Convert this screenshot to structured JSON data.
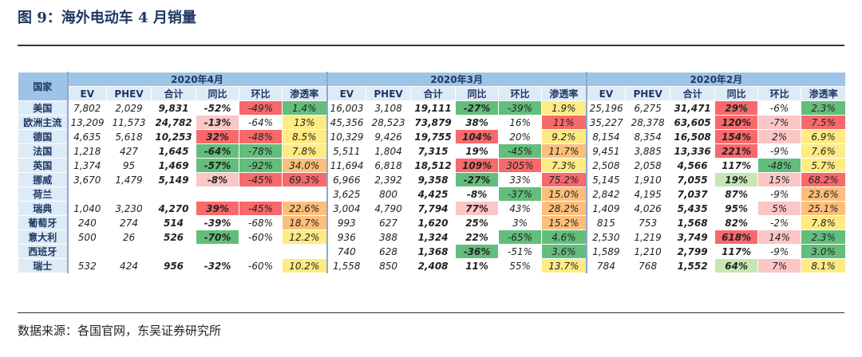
{
  "header": {
    "title": "图 9：海外电动车 4 月销量"
  },
  "table": {
    "corner": "国家",
    "groups": [
      "2020年4月",
      "2020年3月",
      "2020年2月"
    ],
    "columns": [
      "EV",
      "PHEV",
      "合计",
      "同比",
      "环比",
      "渗透率"
    ],
    "rows": [
      {
        "country": "美国",
        "cells": [
          "7,802",
          "2,029",
          "9,831",
          "-52%",
          "-49%",
          "1.4%",
          "16,003",
          "3,108",
          "19,111",
          "-27%",
          "-39%",
          "1.9%",
          "25,196",
          "6,275",
          "31,471",
          "29%",
          "-6%",
          "2.3%"
        ]
      },
      {
        "country": "欧洲主流",
        "cells": [
          "13,209",
          "11,573",
          "24,782",
          "-13%",
          "-64%",
          "13%",
          "45,356",
          "28,523",
          "73,879",
          "38%",
          "16%",
          "11%",
          "35,227",
          "28,378",
          "63,605",
          "120%",
          "-7%",
          "7.5%"
        ]
      },
      {
        "country": "德国",
        "cells": [
          "4,635",
          "5,618",
          "10,253",
          "32%",
          "-48%",
          "8.5%",
          "10,329",
          "9,426",
          "19,755",
          "104%",
          "20%",
          "9.2%",
          "8,154",
          "8,354",
          "16,508",
          "154%",
          "2%",
          "6.9%"
        ]
      },
      {
        "country": "法国",
        "cells": [
          "1,218",
          "427",
          "1,645",
          "-64%",
          "-78%",
          "7.8%",
          "5,511",
          "1,804",
          "7,315",
          "19%",
          "-45%",
          "11.7%",
          "9,451",
          "3,885",
          "13,336",
          "221%",
          "-9%",
          "7.6%"
        ]
      },
      {
        "country": "英国",
        "cells": [
          "1,374",
          "95",
          "1,469",
          "-57%",
          "-92%",
          "34.0%",
          "11,694",
          "6,818",
          "18,512",
          "109%",
          "305%",
          "7.3%",
          "2,508",
          "2,058",
          "4,566",
          "117%",
          "-48%",
          "5.7%"
        ]
      },
      {
        "country": "挪威",
        "cells": [
          "3,670",
          "1,479",
          "5,149",
          "-8%",
          "-45%",
          "69.3%",
          "6,966",
          "2,392",
          "9,358",
          "-27%",
          "33%",
          "75.2%",
          "5,145",
          "1,910",
          "7,055",
          "19%",
          "15%",
          "68.2%"
        ]
      },
      {
        "country": "荷兰",
        "cells": [
          null,
          null,
          null,
          null,
          null,
          null,
          "3,625",
          "800",
          "4,425",
          "-8%",
          "-37%",
          "15.0%",
          "2,842",
          "4,195",
          "7,037",
          "87%",
          "-9%",
          "23.6%"
        ]
      },
      {
        "country": "瑞典",
        "cells": [
          "1,040",
          "3,230",
          "4,270",
          "39%",
          "-45%",
          "22.6%",
          "3,004",
          "4,790",
          "7,794",
          "77%",
          "43%",
          "28.2%",
          "1,409",
          "4,026",
          "5,435",
          "95%",
          "5%",
          "25.1%"
        ]
      },
      {
        "country": "葡萄牙",
        "cells": [
          "240",
          "274",
          "514",
          "-39%",
          "-68%",
          "18.7%",
          "993",
          "627",
          "1,620",
          "25%",
          "3%",
          "15.2%",
          "815",
          "753",
          "1,568",
          "82%",
          "-2%",
          "7.8%"
        ]
      },
      {
        "country": "意大利",
        "cells": [
          "500",
          "26",
          "526",
          "-70%",
          "-60%",
          "12.2%",
          "936",
          "388",
          "1,324",
          "22%",
          "-65%",
          "4.6%",
          "2,530",
          "1,219",
          "3,749",
          "618%",
          "14%",
          "2.3%"
        ]
      },
      {
        "country": "西班牙",
        "cells": [
          null,
          null,
          null,
          null,
          null,
          null,
          "740",
          "628",
          "1,368",
          "-36%",
          "-51%",
          "3.6%",
          "1,589",
          "1,210",
          "2,799",
          "117%",
          "-9%",
          "3.0%"
        ]
      },
      {
        "country": "瑞士",
        "cells": [
          "532",
          "424",
          "956",
          "-32%",
          "-60%",
          "10.2%",
          "1,558",
          "850",
          "2,408",
          "11%",
          "55%",
          "13.7%",
          "784",
          "768",
          "1,552",
          "64%",
          "7%",
          "8.1%"
        ]
      }
    ]
  },
  "source": "数据来源：各国官网，东吴证券研究所"
}
